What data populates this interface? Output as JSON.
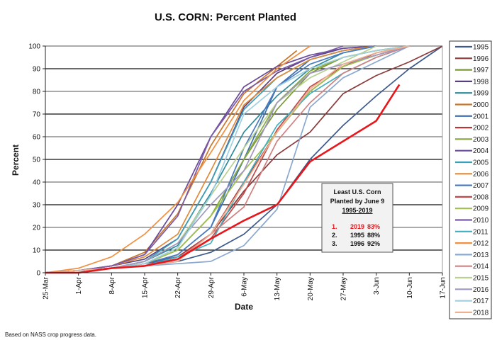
{
  "chart_data": {
    "type": "line",
    "title": "U.S. CORN: Percent Planted",
    "xlabel": "Date",
    "ylabel": "Percent",
    "ylim": [
      0,
      100
    ],
    "yticks": [
      0,
      10,
      20,
      30,
      40,
      50,
      60,
      70,
      80,
      90,
      100
    ],
    "x_unit": "weeks since 25-Mar",
    "xlim": [
      0,
      12
    ],
    "xtick_labels": [
      "25-Mar",
      "1-Apr",
      "8-Apr",
      "15-Apr",
      "22-Apr",
      "29-Apr",
      "6-May",
      "13-May",
      "20-May",
      "27-May",
      "3-Jun",
      "10-Jun",
      "17-Jun"
    ],
    "grid": "horizontal",
    "legend_position": "right",
    "footnote": "Based on NASS crop progress data.",
    "annotation": {
      "title_lines": [
        "Least U.S. Corn",
        "Planted by June 9"
      ],
      "subtitle": "1995-2019",
      "rows": [
        {
          "rank": "1.",
          "year": "2019",
          "pct": "83%",
          "highlight": true
        },
        {
          "rank": "2.",
          "year": "1995",
          "pct": "88%",
          "highlight": false
        },
        {
          "rank": "3.",
          "year": "1996",
          "pct": "92%",
          "highlight": false
        }
      ],
      "highlight_color": "#e8161b"
    },
    "series": [
      {
        "name": "1995",
        "color": "#3c5a8c",
        "x": [
          0,
          1,
          2,
          3,
          4,
          5,
          6,
          7,
          8,
          9,
          10,
          11,
          12
        ],
        "y": [
          0,
          1,
          2,
          3,
          5,
          9,
          17,
          30,
          50,
          65,
          78,
          90,
          100
        ]
      },
      {
        "name": "1996",
        "color": "#8b3a3a",
        "x": [
          0,
          1,
          2,
          3,
          4,
          5,
          6,
          7,
          8,
          9,
          10,
          11,
          12
        ],
        "y": [
          0,
          1,
          2,
          4,
          7,
          17,
          36,
          52,
          62,
          79,
          87,
          93,
          100
        ]
      },
      {
        "name": "1997",
        "color": "#7a9a3a",
        "x": [
          0,
          1,
          2,
          3,
          4,
          5,
          6,
          7,
          8,
          9,
          10,
          11
        ],
        "y": [
          0,
          1,
          2,
          4,
          10,
          25,
          50,
          72,
          88,
          95,
          98,
          100
        ]
      },
      {
        "name": "1998",
        "color": "#5a3f80",
        "x": [
          0,
          1,
          2,
          3,
          4,
          5,
          6,
          7,
          8,
          9,
          10
        ],
        "y": [
          0,
          1,
          3,
          6,
          15,
          40,
          73,
          88,
          95,
          99,
          100
        ]
      },
      {
        "name": "1999",
        "color": "#2e8a9a",
        "x": [
          0,
          1,
          2,
          3,
          4,
          5,
          6,
          7,
          8,
          9,
          10
        ],
        "y": [
          0,
          1,
          2,
          5,
          12,
          35,
          62,
          78,
          90,
          97,
          100
        ]
      },
      {
        "name": "2000",
        "color": "#c8762a",
        "x": [
          0,
          1,
          2,
          3,
          4,
          5,
          6,
          7,
          7.6
        ],
        "y": [
          0,
          1,
          3,
          9,
          26,
          56,
          79,
          91,
          98
        ]
      },
      {
        "name": "2001",
        "color": "#3d6fb0",
        "x": [
          0,
          1,
          2,
          3,
          4,
          5,
          6,
          7,
          8,
          9,
          10
        ],
        "y": [
          0,
          1,
          2,
          3,
          8,
          20,
          50,
          82,
          94,
          98,
          100
        ]
      },
      {
        "name": "2002",
        "color": "#b03a3a",
        "x": [
          0,
          1,
          2,
          3,
          4,
          5,
          6,
          7,
          8,
          9,
          10,
          11
        ],
        "y": [
          0,
          1,
          2,
          3,
          7,
          17,
          40,
          62,
          80,
          91,
          97,
          100
        ]
      },
      {
        "name": "2003",
        "color": "#8aaa40",
        "x": [
          0,
          1,
          2,
          3,
          4,
          5,
          6,
          7,
          8,
          9,
          10,
          11
        ],
        "y": [
          0,
          1,
          2,
          4,
          10,
          25,
          50,
          75,
          89,
          95,
          98,
          100
        ]
      },
      {
        "name": "2004",
        "color": "#6a4a9a",
        "x": [
          0,
          1,
          2,
          3,
          4,
          5,
          6,
          7,
          8,
          9,
          10
        ],
        "y": [
          0,
          1,
          3,
          8,
          30,
          60,
          82,
          91,
          96,
          99,
          100
        ]
      },
      {
        "name": "2005",
        "color": "#3aa0b8",
        "x": [
          0,
          1,
          2,
          3,
          4,
          5,
          6,
          7,
          8,
          9,
          10
        ],
        "y": [
          0,
          1,
          2,
          5,
          15,
          40,
          72,
          86,
          94,
          98,
          100
        ]
      },
      {
        "name": "2006",
        "color": "#e08a3a",
        "x": [
          0,
          1,
          2,
          3,
          4,
          5,
          6,
          7,
          8,
          9,
          10
        ],
        "y": [
          0,
          1,
          3,
          7,
          17,
          45,
          74,
          86,
          94,
          98,
          100
        ]
      },
      {
        "name": "2007",
        "color": "#4a7ac0",
        "x": [
          0,
          1,
          2,
          3,
          4,
          5,
          6,
          7,
          8,
          9,
          10
        ],
        "y": [
          0,
          1,
          2,
          4,
          8,
          20,
          55,
          82,
          92,
          97,
          100
        ]
      },
      {
        "name": "2008",
        "color": "#c04a4a",
        "x": [
          0,
          1,
          2,
          3,
          4,
          5,
          6,
          7,
          8,
          9,
          10,
          11
        ],
        "y": [
          0,
          1,
          2,
          3,
          6,
          15,
          35,
          63,
          82,
          91,
          96,
          100
        ]
      },
      {
        "name": "2009",
        "color": "#a0c050",
        "x": [
          0,
          1,
          2,
          3,
          4,
          5,
          6,
          7,
          8,
          9,
          10,
          11
        ],
        "y": [
          0,
          1,
          2,
          4,
          10,
          25,
          45,
          62,
          80,
          91,
          96,
          100
        ]
      },
      {
        "name": "2010",
        "color": "#7a5aa8",
        "x": [
          0,
          1,
          2,
          3,
          4,
          5,
          6,
          7,
          8,
          9
        ],
        "y": [
          0,
          1,
          3,
          8,
          25,
          60,
          80,
          89,
          95,
          100
        ]
      },
      {
        "name": "2011",
        "color": "#40b0c0",
        "x": [
          0,
          1,
          2,
          3,
          4,
          5,
          6,
          7,
          8,
          9,
          10,
          11
        ],
        "y": [
          0,
          1,
          2,
          3,
          7,
          13,
          40,
          65,
          79,
          88,
          95,
          100
        ]
      },
      {
        "name": "2012",
        "color": "#f09040",
        "x": [
          0,
          1,
          2,
          3,
          4,
          5,
          6,
          7,
          8
        ],
        "y": [
          0,
          2,
          7,
          17,
          31,
          53,
          76,
          90,
          100
        ]
      },
      {
        "name": "2013",
        "color": "#8aa8d0",
        "x": [
          0,
          1,
          2,
          3,
          4,
          5,
          6,
          7,
          8,
          9,
          10,
          11
        ],
        "y": [
          0,
          1,
          2,
          3,
          4,
          5,
          12,
          28,
          73,
          86,
          93,
          100
        ]
      },
      {
        "name": "2014",
        "color": "#d08080",
        "x": [
          0,
          1,
          2,
          3,
          4,
          5,
          6,
          7,
          8,
          9,
          10,
          11
        ],
        "y": [
          0,
          1,
          2,
          3,
          6,
          17,
          29,
          58,
          75,
          88,
          95,
          100
        ]
      },
      {
        "name": "2015",
        "color": "#b8d090",
        "x": [
          0,
          1,
          2,
          3,
          4,
          5,
          6,
          7,
          8,
          9,
          10
        ],
        "y": [
          0,
          1,
          2,
          5,
          13,
          34,
          55,
          75,
          86,
          93,
          100
        ]
      },
      {
        "name": "2016",
        "color": "#a098c0",
        "x": [
          0,
          1,
          2,
          3,
          4,
          5,
          6,
          7,
          8,
          9,
          10,
          11
        ],
        "y": [
          0,
          1,
          2,
          5,
          13,
          30,
          45,
          75,
          88,
          92,
          96,
          100
        ]
      },
      {
        "name": "2017",
        "color": "#a0d0e0",
        "x": [
          0,
          1,
          2,
          3,
          4,
          5,
          6,
          7,
          8,
          9,
          10,
          11
        ],
        "y": [
          0,
          1,
          2,
          4,
          11,
          34,
          70,
          82,
          90,
          95,
          98,
          100
        ]
      },
      {
        "name": "2018",
        "color": "#f0b090",
        "x": [
          0,
          1,
          2,
          3,
          4,
          5,
          6,
          7,
          8,
          9,
          10,
          11
        ],
        "y": [
          0,
          1,
          2,
          3,
          5,
          17,
          39,
          62,
          81,
          92,
          97,
          100
        ]
      },
      {
        "name": "2019",
        "color": "#e8161b",
        "x": [
          0,
          1,
          2,
          3,
          4,
          5,
          6,
          7,
          8,
          9,
          10,
          10.7
        ],
        "y": [
          0,
          0,
          2,
          3,
          6,
          15,
          23,
          30,
          49,
          58,
          67,
          83
        ],
        "legend": false
      }
    ]
  }
}
